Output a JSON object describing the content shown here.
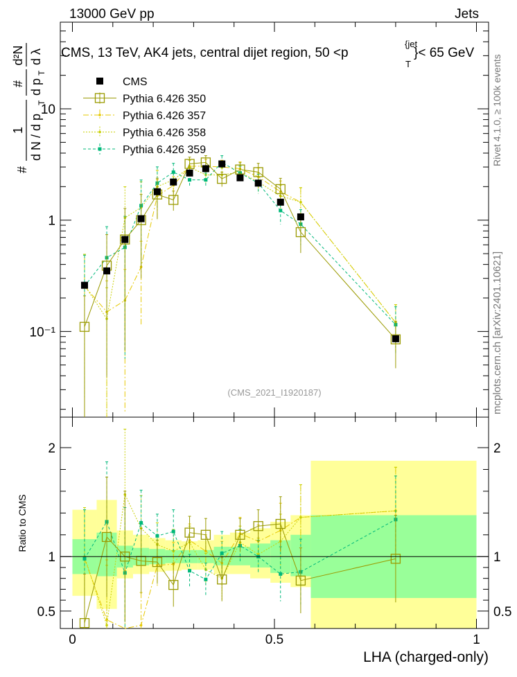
{
  "header": {
    "left": "13000 GeV pp",
    "right": "Jets"
  },
  "side": {
    "rivet": "Rivet 4.1.0, ≥ 100k events",
    "mcplots": "mcplots.cern.ch [arXiv:2401.10621]"
  },
  "watermark": "(CMS_2021_I1920187)",
  "main_title": {
    "text": "CMS, 13 TeV, AK4 jets, central dijet region, 50 <p",
    "sup": "{jet",
    "sub": "T",
    "tail": "}< 65 GeV"
  },
  "ylabel": {
    "num1": "1",
    "den1": "d N / d p",
    "den1_sub": "T",
    "num2": "#",
    "den2": "d p",
    "den2_sub": "T",
    "num3": "d²N",
    "den3": "d λ",
    "hash": "#"
  },
  "colors": {
    "cms": "#000000",
    "p350": "#9a9a00",
    "p357": "#e6c800",
    "p358": "#c8d000",
    "p359": "#00b87a",
    "band_green": "#99ff99",
    "band_yellow": "#ffff99"
  },
  "chart_data": [
    {
      "type": "scatter",
      "panel": "main",
      "xlabel": "LHA (charged-only)",
      "ylim": [
        0.017,
        60
      ],
      "yscale": "log",
      "xlim": [
        -0.03,
        1.03
      ],
      "y_ticks": [
        "10⁻¹",
        "1",
        "10"
      ],
      "legend": [
        "CMS",
        "Pythia 6.426 350",
        "Pythia 6.426 357",
        "Pythia 6.426 358",
        "Pythia 6.426 359"
      ],
      "legend_position": "top-left",
      "x": [
        0.03,
        0.085,
        0.13,
        0.17,
        0.21,
        0.25,
        0.29,
        0.33,
        0.37,
        0.415,
        0.46,
        0.515,
        0.565,
        0.8
      ],
      "series": [
        {
          "name": "CMS",
          "values": [
            0.26,
            0.35,
            0.67,
            1.03,
            1.8,
            2.2,
            2.65,
            2.9,
            3.2,
            2.4,
            2.15,
            1.45,
            1.07,
            0.086
          ]
        },
        {
          "name": "Pythia 6.426 350",
          "values": [
            0.11,
            0.39,
            0.67,
            1.0,
            1.7,
            1.52,
            3.2,
            3.3,
            2.35,
            2.85,
            2.7,
            1.9,
            0.78,
            0.085
          ]
        },
        {
          "name": "Pythia 6.426 357",
          "values": [
            0.255,
            0.15,
            0.19,
            0.38,
            1.65,
            2.05,
            3.05,
            3.05,
            3.0,
            2.9,
            2.45,
            1.8,
            1.45,
            0.12
          ]
        },
        {
          "name": "Pythia 6.426 358",
          "values": [
            0.26,
            0.13,
            1.05,
            1.3,
            2.0,
            2.3,
            3.0,
            2.55,
            2.55,
            2.7,
            2.2,
            1.65,
            1.45,
            0.12
          ]
        },
        {
          "name": "Pythia 6.426 359",
          "values": [
            0.255,
            0.46,
            0.57,
            1.35,
            2.15,
            2.7,
            2.3,
            2.3,
            3.3,
            2.65,
            2.15,
            1.22,
            0.92,
            0.115
          ]
        }
      ]
    },
    {
      "type": "scatter",
      "panel": "ratio",
      "xlabel": "LHA (charged-only)",
      "ylabel": "Ratio to CMS",
      "ylim": [
        0.34,
        2.28
      ],
      "x_ticks": [
        "0",
        "0.5",
        "1"
      ],
      "y_ticks": [
        "0.5",
        "1",
        "2"
      ],
      "bin_edges": [
        0.0,
        0.06,
        0.11,
        0.15,
        0.19,
        0.23,
        0.27,
        0.31,
        0.35,
        0.39,
        0.44,
        0.49,
        0.54,
        0.59,
        1.0
      ],
      "band_inner": [
        [
          0.84,
          1.16
        ],
        [
          0.82,
          1.22
        ],
        [
          0.9,
          1.1
        ],
        [
          0.92,
          1.08
        ],
        [
          0.93,
          1.07
        ],
        [
          0.94,
          1.06
        ],
        [
          0.94,
          1.06
        ],
        [
          0.94,
          1.06
        ],
        [
          0.92,
          1.09
        ],
        [
          0.92,
          1.09
        ],
        [
          0.9,
          1.12
        ],
        [
          0.85,
          1.15
        ],
        [
          0.82,
          1.2
        ],
        [
          0.62,
          1.38
        ]
      ],
      "band_outer": [
        [
          0.64,
          1.43
        ],
        [
          0.52,
          1.52
        ],
        [
          0.8,
          1.24
        ],
        [
          0.84,
          1.2
        ],
        [
          0.86,
          1.17
        ],
        [
          0.87,
          1.15
        ],
        [
          0.88,
          1.14
        ],
        [
          0.88,
          1.15
        ],
        [
          0.84,
          1.2
        ],
        [
          0.84,
          1.22
        ],
        [
          0.8,
          1.26
        ],
        [
          0.76,
          1.32
        ],
        [
          0.72,
          1.38
        ],
        [
          0.34,
          1.88
        ]
      ],
      "series": [
        {
          "name": "Pythia 6.426 350",
          "values": [
            0.39,
            1.18,
            1.0,
            0.96,
            0.95,
            0.74,
            1.22,
            1.2,
            0.79,
            1.2,
            1.28,
            1.3,
            0.78,
            0.98
          ]
        },
        {
          "name": "Pythia 6.426 357",
          "values": [
            0.98,
            0.42,
            0.29,
            0.37,
            0.92,
            0.93,
            1.15,
            1.05,
            0.94,
            1.21,
            1.14,
            1.24,
            1.36,
            1.42
          ]
        },
        {
          "name": "Pythia 6.426 358",
          "values": [
            1.0,
            0.37,
            1.57,
            1.26,
            1.11,
            1.05,
            1.13,
            0.88,
            0.8,
            1.13,
            1.02,
            1.14,
            1.36,
            1.42
          ]
        },
        {
          "name": "Pythia 6.426 359",
          "values": [
            0.98,
            1.32,
            0.85,
            1.31,
            1.19,
            1.23,
            0.87,
            0.79,
            1.03,
            1.1,
            1.0,
            0.84,
            0.86,
            1.34
          ]
        }
      ]
    }
  ]
}
